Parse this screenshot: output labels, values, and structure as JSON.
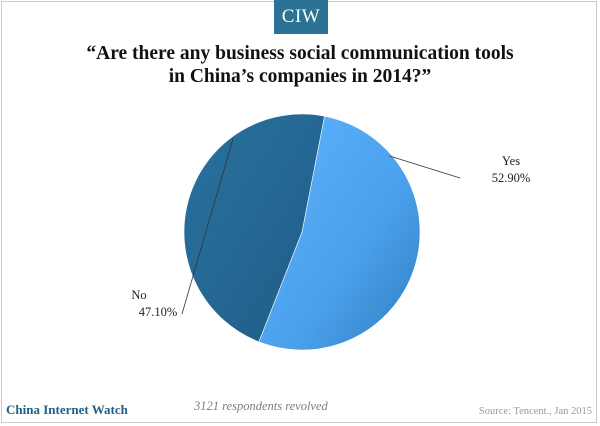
{
  "brand": {
    "logo_text": "CIW",
    "logo_color": "#2a7394",
    "site_name": "China Internet Watch"
  },
  "title_lines": [
    "“Are there any business social communication tools",
    "in China’s companies in 2014?”"
  ],
  "note": "3121 respondents revolved",
  "source": "Source: Tencent., Jan 2015",
  "chart_data": {
    "type": "pie",
    "title": "“Are there any business social communication tools in China’s companies in 2014?”",
    "slices": [
      {
        "label": "Yes",
        "value": 52.9,
        "value_label": "52.90%",
        "color": "#4da3ef"
      },
      {
        "label": "No",
        "value": 47.1,
        "value_label": "47.10%",
        "color": "#236690"
      }
    ],
    "legend": "none"
  }
}
